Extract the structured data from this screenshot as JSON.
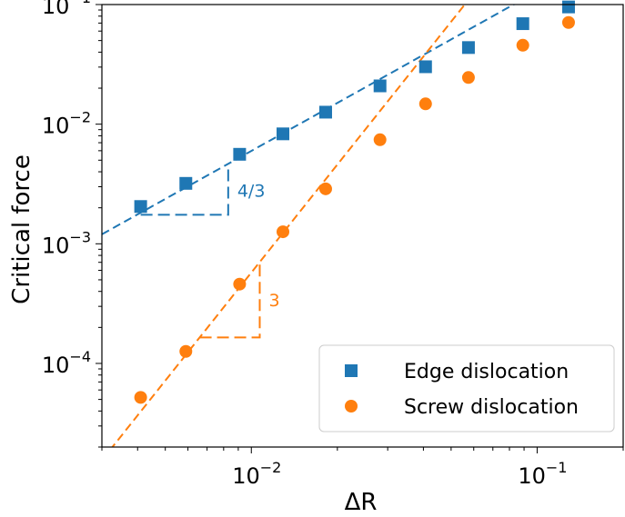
{
  "chart_data": {
    "type": "scatter",
    "xlabel": "ΔR",
    "ylabel": "Critical force",
    "x_scale": "log",
    "y_scale": "log",
    "xlim": [
      0.003,
      0.2
    ],
    "ylim": [
      2e-05,
      0.1
    ],
    "x_ticks": [
      {
        "value": 0.01,
        "base": "10",
        "exp": "−2"
      },
      {
        "value": 0.1,
        "base": "10",
        "exp": "−1"
      }
    ],
    "y_ticks": [
      {
        "value": 0.0001,
        "base": "10",
        "exp": "−4"
      },
      {
        "value": 0.001,
        "base": "10",
        "exp": "−3"
      },
      {
        "value": 0.01,
        "base": "10",
        "exp": "−2"
      },
      {
        "value": 0.1,
        "base": "10",
        "exp": "−1"
      }
    ],
    "grid": false,
    "legend_position": "bottom-right",
    "series": [
      {
        "name": "Edge dislocation",
        "marker": "square",
        "color": "#1f77b4",
        "x": [
          0.0041,
          0.0059,
          0.0091,
          0.0129,
          0.0182,
          0.0282,
          0.0407,
          0.0575,
          0.0891,
          0.1288
        ],
        "y": [
          0.00205,
          0.0032,
          0.0056,
          0.0083,
          0.0126,
          0.0209,
          0.0302,
          0.0437,
          0.0692,
          0.0955
        ]
      },
      {
        "name": "Screw dislocation",
        "marker": "circle",
        "color": "#ff7f0e",
        "x": [
          0.0041,
          0.0059,
          0.0091,
          0.0129,
          0.0182,
          0.0282,
          0.0407,
          0.0575,
          0.0891,
          0.1288
        ],
        "y": [
          5.2e-05,
          0.000126,
          0.00046,
          0.00126,
          0.00288,
          0.00741,
          0.01479,
          0.02455,
          0.04571,
          0.0708
        ]
      }
    ],
    "fit_lines": [
      {
        "series": "Edge dislocation",
        "slope": 1.3333,
        "x_ref": 0.0041,
        "y_ref": 0.00182,
        "x_range": [
          0.003,
          0.2
        ],
        "style": "dashed",
        "color": "#1f77b4"
      },
      {
        "series": "Screw dislocation",
        "slope": 3,
        "x_ref": 0.0059,
        "y_ref": 0.000118,
        "x_range": [
          0.003,
          0.2
        ],
        "style": "dashed",
        "color": "#ff7f0e"
      }
    ],
    "slope_triangles": [
      {
        "label": "4/3",
        "color": "#1f77b4",
        "slope": 1.3333,
        "x0": 0.0041,
        "x1": 0.0083,
        "y0": 0.00175
      },
      {
        "label": "3",
        "color": "#ff7f0e",
        "slope": 3,
        "x0": 0.0066,
        "x1": 0.0107,
        "y0": 0.000165
      }
    ]
  }
}
